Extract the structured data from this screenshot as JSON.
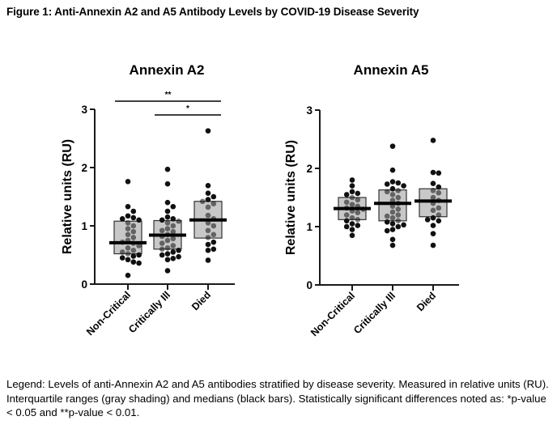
{
  "figure_title": "Figure 1: Anti-Annexin A2 and A5 Antibody Levels by COVID-19 Disease Severity",
  "legend_text": "Legend: Levels of anti-Annexin A2 and A5 antibodies stratified by disease severity. Measured in relative units (RU). Interquartile ranges (gray shading) and medians (black bars). Statistically significant differences noted as: *p-value < 0.05 and **p-value < 0.01.",
  "colors": {
    "box_fill": "#c8c8c8",
    "point": "#111111",
    "axis": "#1a1a1a"
  },
  "chart_data": [
    {
      "type": "scatter",
      "subtype": "dot-plot with IQR box and median bar",
      "title": "Annexin A2",
      "ylabel": "Relative units (RU)",
      "xlabel": "",
      "ylim": [
        0,
        3
      ],
      "yticks": [
        "0",
        "1",
        "2",
        "3"
      ],
      "categories": [
        "Non-Critical",
        "Critically Ill",
        "Died"
      ],
      "grid": false,
      "groups": [
        {
          "name": "Non-Critical",
          "q1": 0.52,
          "median": 0.71,
          "q3": 1.08,
          "points": [
            1.76,
            1.33,
            1.25,
            1.17,
            1.14,
            1.12,
            1.1,
            1.05,
            1.0,
            0.95,
            0.9,
            0.85,
            0.8,
            0.75,
            0.72,
            0.7,
            0.66,
            0.62,
            0.58,
            0.55,
            0.52,
            0.5,
            0.48,
            0.45,
            0.42,
            0.38,
            0.36,
            0.15
          ]
        },
        {
          "name": "Critically Ill",
          "q1": 0.6,
          "median": 0.84,
          "q3": 1.09,
          "points": [
            1.97,
            1.72,
            1.4,
            1.33,
            1.25,
            1.15,
            1.12,
            1.1,
            1.08,
            1.05,
            1.0,
            0.95,
            0.92,
            0.9,
            0.85,
            0.82,
            0.78,
            0.75,
            0.7,
            0.66,
            0.62,
            0.6,
            0.58,
            0.55,
            0.52,
            0.5,
            0.47,
            0.44,
            0.42,
            0.23
          ]
        },
        {
          "name": "Died",
          "q1": 0.79,
          "median": 1.1,
          "q3": 1.42,
          "points": [
            2.63,
            1.69,
            1.56,
            1.5,
            1.45,
            1.42,
            1.38,
            1.32,
            1.18,
            1.12,
            1.05,
            1.0,
            0.92,
            0.85,
            0.8,
            0.72,
            0.68,
            0.6,
            0.58,
            0.41
          ]
        }
      ],
      "annotations": [
        {
          "text": "**",
          "from": "Non-Critical",
          "to": "Died"
        },
        {
          "text": "*",
          "from": "Critically Ill",
          "to": "Died"
        }
      ]
    },
    {
      "type": "scatter",
      "subtype": "dot-plot with IQR box and median bar",
      "title": "Annexin A5",
      "ylabel": "Relative units (RU)",
      "xlabel": "",
      "ylim": [
        0,
        3
      ],
      "yticks": [
        "0",
        "1",
        "2",
        "3"
      ],
      "categories": [
        "Non-Critical",
        "Critically Ill",
        "Died"
      ],
      "grid": false,
      "groups": [
        {
          "name": "Non-Critical",
          "q1": 1.12,
          "median": 1.31,
          "q3": 1.5,
          "points": [
            1.8,
            1.7,
            1.6,
            1.57,
            1.55,
            1.5,
            1.46,
            1.42,
            1.38,
            1.35,
            1.32,
            1.3,
            1.27,
            1.24,
            1.2,
            1.15,
            1.12,
            1.1,
            1.05,
            1.02,
            1.0,
            0.95,
            0.85
          ]
        },
        {
          "name": "Critically Ill",
          "q1": 1.1,
          "median": 1.4,
          "q3": 1.63,
          "points": [
            2.38,
            1.97,
            1.77,
            1.75,
            1.73,
            1.7,
            1.65,
            1.62,
            1.6,
            1.55,
            1.5,
            1.45,
            1.4,
            1.35,
            1.3,
            1.25,
            1.2,
            1.18,
            1.15,
            1.1,
            1.08,
            1.05,
            1.03,
            1.0,
            0.95,
            0.93,
            0.78,
            0.68
          ]
        },
        {
          "name": "Died",
          "q1": 1.17,
          "median": 1.44,
          "q3": 1.65,
          "points": [
            2.48,
            1.93,
            1.92,
            1.74,
            1.68,
            1.62,
            1.58,
            1.5,
            1.45,
            1.4,
            1.32,
            1.28,
            1.2,
            1.15,
            1.12,
            1.1,
            1.02,
            0.88,
            0.68
          ]
        }
      ],
      "annotations": []
    }
  ]
}
